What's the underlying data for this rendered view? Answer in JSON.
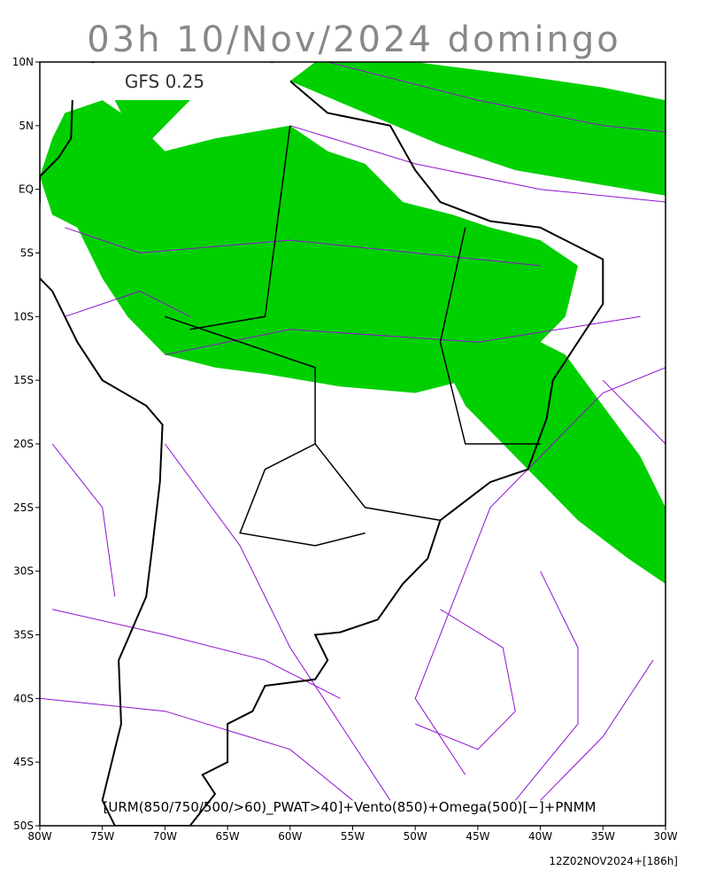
{
  "title": "03h 10/Nov/2024 domingo",
  "model_label": "GFS 0.25",
  "lat_labels": [
    "10N",
    "5N",
    "EQ",
    "5S",
    "10S",
    "15S",
    "20S",
    "25S",
    "30S",
    "35S",
    "40S",
    "45S",
    "50S"
  ],
  "lon_labels": [
    "80W",
    "75W",
    "70W",
    "65W",
    "60W",
    "55W",
    "50W",
    "45W",
    "40W",
    "35W",
    "30W"
  ],
  "caption": "[URM(850/750/500/>60)_PWAT>40]+Vento(850)+Omega(500)[−]+PNMM",
  "footer": "12Z02NOV2024+[186h]"
}
